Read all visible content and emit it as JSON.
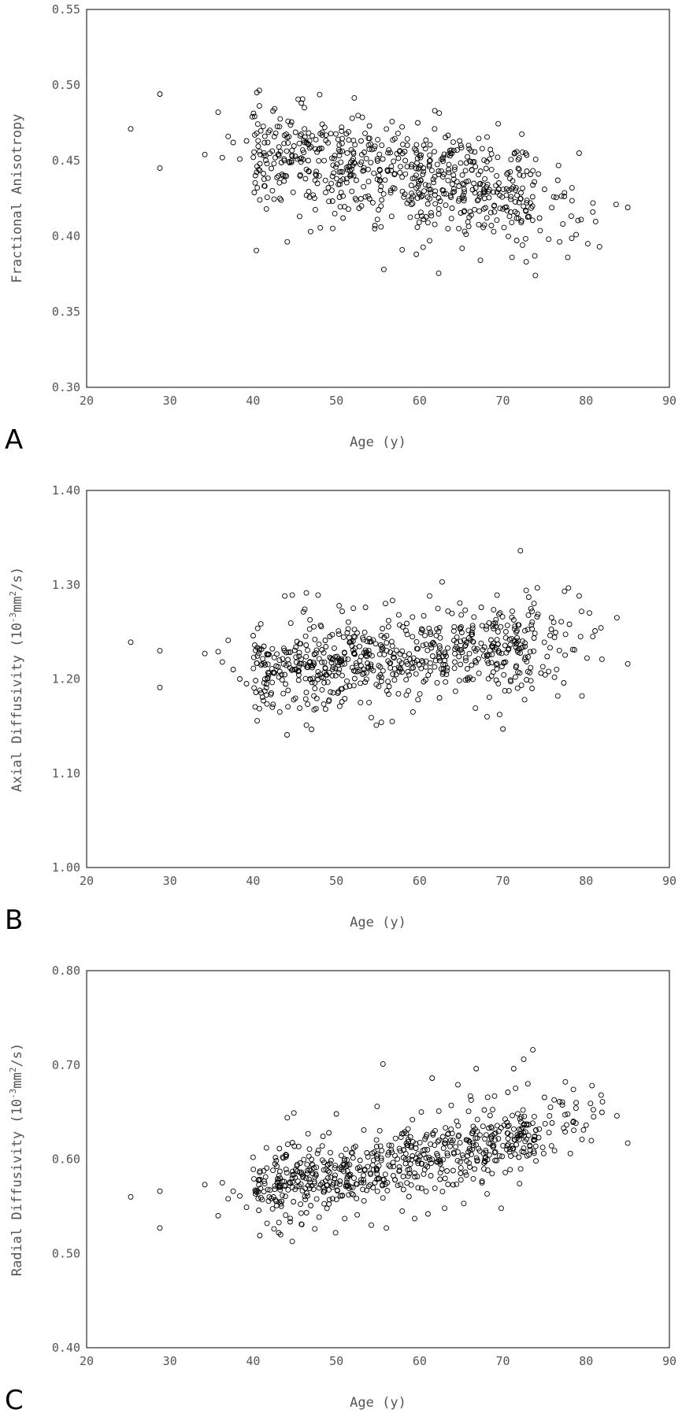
{
  "chart_data": [
    {
      "type": "scatter",
      "panel_label": "A",
      "xlabel": "Age (y)",
      "ylabel": "Fractional Anisotropy",
      "xlim": [
        20,
        90
      ],
      "ylim": [
        0.3,
        0.55
      ],
      "xticks": [
        "20",
        "30",
        "40",
        "50",
        "60",
        "70",
        "80",
        "90"
      ],
      "yticks": [
        "0.30",
        "0.35",
        "0.40",
        "0.45",
        "0.50",
        "0.55"
      ],
      "marker": "open-circle",
      "color": "#000000",
      "grid": false,
      "points": [
        [
          25.3,
          0.471
        ],
        [
          28.8,
          0.494
        ],
        [
          28.8,
          0.445
        ],
        [
          34.2,
          0.454
        ],
        [
          35.8,
          0.482
        ],
        [
          36.3,
          0.452
        ],
        [
          37.0,
          0.466
        ],
        [
          37.6,
          0.462
        ],
        [
          38.4,
          0.451
        ],
        [
          39.2,
          0.463
        ],
        [
          39.9,
          0.479
        ],
        [
          40.2,
          0.467
        ],
        [
          40.5,
          0.432
        ],
        [
          40.8,
          0.424
        ],
        [
          41.3,
          0.455
        ],
        [
          41.6,
          0.418
        ],
        [
          42.0,
          0.47
        ],
        [
          42.5,
          0.448
        ],
        [
          43.1,
          0.459
        ],
        [
          43.6,
          0.44
        ],
        [
          44.2,
          0.476
        ],
        [
          44.8,
          0.429
        ],
        [
          45.3,
          0.451
        ],
        [
          45.8,
          0.488
        ],
        [
          46.4,
          0.462
        ],
        [
          46.9,
          0.403
        ],
        [
          47.5,
          0.441
        ],
        [
          48.0,
          0.458
        ],
        [
          48.6,
          0.472
        ],
        [
          49.1,
          0.423
        ],
        [
          49.6,
          0.447
        ],
        [
          50.2,
          0.464
        ],
        [
          50.8,
          0.412
        ],
        [
          51.3,
          0.455
        ],
        [
          51.9,
          0.478
        ],
        [
          52.4,
          0.437
        ],
        [
          53.0,
          0.449
        ],
        [
          53.5,
          0.426
        ],
        [
          54.1,
          0.461
        ],
        [
          54.6,
          0.405
        ],
        [
          55.2,
          0.444
        ],
        [
          55.7,
          0.378
        ],
        [
          56.3,
          0.457
        ],
        [
          56.8,
          0.432
        ],
        [
          57.4,
          0.468
        ],
        [
          57.9,
          0.391
        ],
        [
          58.5,
          0.446
        ],
        [
          59.0,
          0.421
        ],
        [
          59.6,
          0.388
        ],
        [
          60.1,
          0.452
        ],
        [
          60.7,
          0.434
        ],
        [
          61.2,
          0.397
        ],
        [
          61.8,
          0.471
        ],
        [
          62.3,
          0.418
        ],
        [
          62.9,
          0.441
        ],
        [
          63.4,
          0.405
        ],
        [
          64.0,
          0.429
        ],
        [
          64.5,
          0.457
        ],
        [
          65.1,
          0.392
        ],
        [
          65.6,
          0.436
        ],
        [
          66.2,
          0.414
        ],
        [
          66.7,
          0.446
        ],
        [
          67.3,
          0.384
        ],
        [
          67.8,
          0.425
        ],
        [
          68.4,
          0.451
        ],
        [
          68.9,
          0.403
        ],
        [
          69.5,
          0.431
        ],
        [
          70.0,
          0.418
        ],
        [
          70.6,
          0.442
        ],
        [
          71.1,
          0.386
        ],
        [
          71.7,
          0.427
        ],
        [
          72.2,
          0.409
        ],
        [
          72.8,
          0.383
        ],
        [
          73.3,
          0.422
        ],
        [
          73.9,
          0.374
        ],
        [
          74.4,
          0.412
        ],
        [
          75.0,
          0.431
        ],
        [
          75.5,
          0.398
        ],
        [
          76.1,
          0.426
        ],
        [
          76.6,
          0.437
        ],
        [
          77.2,
          0.408
        ],
        [
          77.8,
          0.386
        ],
        [
          78.3,
          0.432
        ],
        [
          78.8,
          0.401
        ],
        [
          79.4,
          0.411
        ],
        [
          80.2,
          0.395
        ],
        [
          80.8,
          0.416
        ],
        [
          81.6,
          0.393
        ],
        [
          83.6,
          0.421
        ],
        [
          85.0,
          0.419
        ]
      ],
      "n_points": 700,
      "trend": {
        "at_40": 0.458,
        "at_85": 0.416
      },
      "spread": 0.016
    },
    {
      "type": "scatter",
      "panel_label": "B",
      "xlabel": "Age (y)",
      "ylabel_prefix": "Axial Diffusivity (10",
      "ylabel_sup1": "-3",
      "ylabel_mid": "mm",
      "ylabel_sup2": "2",
      "ylabel_suffix": "/s)",
      "xlim": [
        20,
        90
      ],
      "ylim": [
        1.0,
        1.4
      ],
      "xticks": [
        "20",
        "30",
        "40",
        "50",
        "60",
        "70",
        "80",
        "90"
      ],
      "yticks": [
        "1.00",
        "1.10",
        "1.20",
        "1.30",
        "1.40"
      ],
      "marker": "open-circle",
      "color": "#000000",
      "grid": false,
      "points": [
        [
          25.3,
          1.239
        ],
        [
          28.8,
          1.23
        ],
        [
          28.8,
          1.191
        ],
        [
          34.2,
          1.227
        ],
        [
          35.8,
          1.229
        ],
        [
          36.3,
          1.218
        ],
        [
          37.0,
          1.241
        ],
        [
          37.6,
          1.21
        ],
        [
          38.4,
          1.2
        ],
        [
          39.2,
          1.195
        ],
        [
          40.2,
          1.236
        ],
        [
          40.8,
          1.188
        ],
        [
          41.6,
          1.183
        ],
        [
          42.4,
          1.173
        ],
        [
          43.2,
          1.165
        ],
        [
          43.8,
          1.288
        ],
        [
          44.7,
          1.289
        ],
        [
          45.6,
          1.169
        ],
        [
          46.2,
          1.274
        ],
        [
          46.4,
          1.151
        ],
        [
          47.3,
          1.182
        ],
        [
          47.8,
          1.289
        ],
        [
          48.7,
          1.168
        ],
        [
          49.5,
          1.247
        ],
        [
          50.4,
          1.171
        ],
        [
          51.3,
          1.249
        ],
        [
          52.1,
          1.193
        ],
        [
          52.9,
          1.175
        ],
        [
          53.5,
          1.276
        ],
        [
          54.2,
          1.159
        ],
        [
          54.8,
          1.151
        ],
        [
          55.4,
          1.154
        ],
        [
          55.9,
          1.28
        ],
        [
          56.7,
          1.155
        ],
        [
          57.5,
          1.268
        ],
        [
          58.4,
          1.183
        ],
        [
          59.2,
          1.165
        ],
        [
          59.8,
          1.178
        ],
        [
          60.5,
          1.267
        ],
        [
          61.2,
          1.288
        ],
        [
          62.1,
          1.196
        ],
        [
          62.7,
          1.303
        ],
        [
          63.4,
          1.272
        ],
        [
          64.3,
          1.187
        ],
        [
          65.0,
          1.268
        ],
        [
          65.8,
          1.199
        ],
        [
          66.7,
          1.169
        ],
        [
          67.4,
          1.276
        ],
        [
          68.1,
          1.16
        ],
        [
          68.7,
          1.226
        ],
        [
          69.3,
          1.289
        ],
        [
          70.0,
          1.147
        ],
        [
          70.8,
          1.242
        ],
        [
          71.5,
          1.202
        ],
        [
          72.1,
          1.336
        ],
        [
          72.6,
          1.178
        ],
        [
          72.8,
          1.294
        ],
        [
          73.5,
          1.19
        ],
        [
          74.1,
          1.266
        ],
        [
          74.8,
          1.213
        ],
        [
          75.5,
          1.208
        ],
        [
          76.1,
          1.26
        ],
        [
          76.6,
          1.182
        ],
        [
          77.4,
          1.293
        ],
        [
          78.0,
          1.258
        ],
        [
          78.6,
          1.231
        ],
        [
          79.5,
          1.182
        ],
        [
          80.4,
          1.27
        ],
        [
          80.8,
          1.245
        ],
        [
          81.9,
          1.221
        ],
        [
          83.7,
          1.265
        ],
        [
          85.0,
          1.216
        ]
      ],
      "n_points": 700,
      "trend": {
        "at_40": 1.208,
        "at_85": 1.246
      },
      "spread": 0.022
    },
    {
      "type": "scatter",
      "panel_label": "C",
      "xlabel": "Age (y)",
      "ylabel_prefix": "Radial Diffusivity (10",
      "ylabel_sup1": "-3",
      "ylabel_mid": "mm",
      "ylabel_sup2": "2",
      "ylabel_suffix": "/s)",
      "xlim": [
        20,
        90
      ],
      "ylim": [
        0.4,
        0.8
      ],
      "xticks": [
        "20",
        "30",
        "40",
        "50",
        "60",
        "70",
        "80",
        "90"
      ],
      "yticks": [
        "0.40",
        "0.50",
        "0.60",
        "0.70",
        "0.80"
      ],
      "marker": "open-circle",
      "color": "#000000",
      "grid": false,
      "points": [
        [
          25.3,
          0.56
        ],
        [
          28.8,
          0.566
        ],
        [
          28.8,
          0.527
        ],
        [
          34.2,
          0.573
        ],
        [
          35.8,
          0.54
        ],
        [
          36.3,
          0.575
        ],
        [
          37.0,
          0.558
        ],
        [
          37.6,
          0.566
        ],
        [
          38.4,
          0.561
        ],
        [
          39.2,
          0.549
        ],
        [
          40.0,
          0.602
        ],
        [
          40.8,
          0.519
        ],
        [
          41.6,
          0.612
        ],
        [
          42.5,
          0.526
        ],
        [
          43.3,
          0.52
        ],
        [
          44.1,
          0.644
        ],
        [
          44.9,
          0.649
        ],
        [
          45.8,
          0.531
        ],
        [
          46.6,
          0.627
        ],
        [
          47.4,
          0.526
        ],
        [
          48.3,
          0.614
        ],
        [
          49.1,
          0.628
        ],
        [
          49.9,
          0.522
        ],
        [
          50.0,
          0.648
        ],
        [
          51.0,
          0.537
        ],
        [
          51.8,
          0.607
        ],
        [
          52.5,
          0.541
        ],
        [
          53.3,
          0.631
        ],
        [
          54.2,
          0.53
        ],
        [
          54.9,
          0.656
        ],
        [
          55.6,
          0.701
        ],
        [
          56.0,
          0.527
        ],
        [
          57.1,
          0.622
        ],
        [
          57.9,
          0.545
        ],
        [
          58.6,
          0.632
        ],
        [
          59.4,
          0.537
        ],
        [
          60.2,
          0.65
        ],
        [
          61.0,
          0.542
        ],
        [
          61.5,
          0.686
        ],
        [
          62.3,
          0.651
        ],
        [
          63.0,
          0.548
        ],
        [
          63.8,
          0.657
        ],
        [
          64.6,
          0.679
        ],
        [
          65.3,
          0.553
        ],
        [
          66.1,
          0.667
        ],
        [
          66.8,
          0.696
        ],
        [
          67.5,
          0.575
        ],
        [
          68.3,
          0.633
        ],
        [
          69.0,
          0.667
        ],
        [
          69.8,
          0.548
        ],
        [
          70.6,
          0.671
        ],
        [
          71.3,
          0.696
        ],
        [
          72.0,
          0.574
        ],
        [
          72.5,
          0.706
        ],
        [
          73.0,
          0.68
        ],
        [
          73.6,
          0.716
        ],
        [
          74.3,
          0.623
        ],
        [
          74.9,
          0.606
        ],
        [
          75.6,
          0.646
        ],
        [
          76.2,
          0.609
        ],
        [
          76.8,
          0.661
        ],
        [
          77.5,
          0.682
        ],
        [
          78.1,
          0.606
        ],
        [
          78.8,
          0.66
        ],
        [
          79.5,
          0.621
        ],
        [
          80.7,
          0.678
        ],
        [
          80.9,
          0.645
        ],
        [
          81.8,
          0.668
        ],
        [
          83.7,
          0.646
        ],
        [
          85.0,
          0.617
        ]
      ],
      "n_points": 700,
      "trend": {
        "at_40": 0.563,
        "at_85": 0.648
      },
      "spread": 0.018
    }
  ]
}
